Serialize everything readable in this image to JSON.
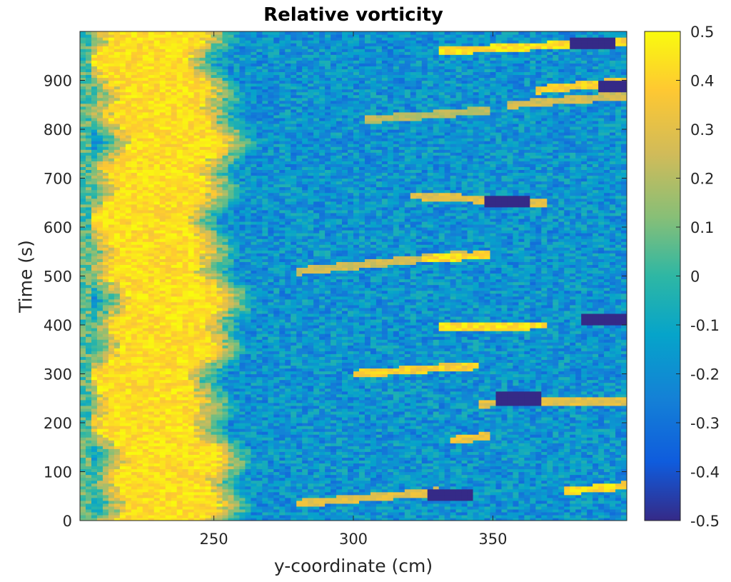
{
  "chart_data": {
    "type": "heatmap",
    "title": "Relative vorticity",
    "xlabel": "y-coordinate (cm)",
    "ylabel": "Time (s)",
    "xlim": [
      202,
      398
    ],
    "ylim": [
      0,
      1000
    ],
    "x_ticks": [
      250,
      300,
      350
    ],
    "y_ticks": [
      0,
      100,
      200,
      300,
      400,
      500,
      600,
      700,
      800,
      900
    ],
    "colorbar": {
      "colormap": "parula",
      "clim": [
        -0.5,
        0.5
      ],
      "ticks": [
        "-0.5",
        "-0.4",
        "-0.3",
        "-0.2",
        "-0.1",
        "0",
        "0.1",
        "0.2",
        "0.3",
        "0.4",
        "0.5"
      ]
    },
    "features": {
      "positive_band": {
        "y_center_cm": 230,
        "half_width_cm": 16,
        "value": 0.5
      },
      "background_value": -0.18,
      "streaks": [
        {
          "y0": 330,
          "t0": 960,
          "y1": 398,
          "t1": 980,
          "value": 0.5
        },
        {
          "y0": 365,
          "t0": 880,
          "y1": 398,
          "t1": 900,
          "value": 0.45
        },
        {
          "y0": 305,
          "t0": 820,
          "y1": 350,
          "t1": 840,
          "value": 0.25
        },
        {
          "y0": 355,
          "t0": 850,
          "y1": 398,
          "t1": 870,
          "value": 0.3
        },
        {
          "y0": 320,
          "t0": 665,
          "y1": 370,
          "t1": 650,
          "value": 0.35
        },
        {
          "y0": 280,
          "t0": 510,
          "y1": 340,
          "t1": 545,
          "value": 0.3
        },
        {
          "y0": 325,
          "t0": 535,
          "y1": 350,
          "t1": 545,
          "value": 0.5
        },
        {
          "y0": 330,
          "t0": 395,
          "y1": 370,
          "t1": 400,
          "value": 0.5
        },
        {
          "y0": 300,
          "t0": 300,
          "y1": 345,
          "t1": 318,
          "value": 0.45
        },
        {
          "y0": 345,
          "t0": 240,
          "y1": 398,
          "t1": 245,
          "value": 0.35
        },
        {
          "y0": 335,
          "t0": 165,
          "y1": 350,
          "t1": 175,
          "value": 0.4
        },
        {
          "y0": 280,
          "t0": 35,
          "y1": 330,
          "t1": 60,
          "value": 0.35
        },
        {
          "y0": 375,
          "t0": 60,
          "y1": 398,
          "t1": 72,
          "value": 0.5
        }
      ],
      "negative_spots": [
        {
          "y": 385,
          "t": 975,
          "value": -0.5
        },
        {
          "y": 396,
          "t": 890,
          "value": -0.5
        },
        {
          "y": 355,
          "t": 655,
          "value": -0.5
        },
        {
          "y": 390,
          "t": 410,
          "value": -0.5
        },
        {
          "y": 360,
          "t": 250,
          "value": -0.5
        },
        {
          "y": 335,
          "t": 55,
          "value": -0.5
        }
      ]
    }
  }
}
